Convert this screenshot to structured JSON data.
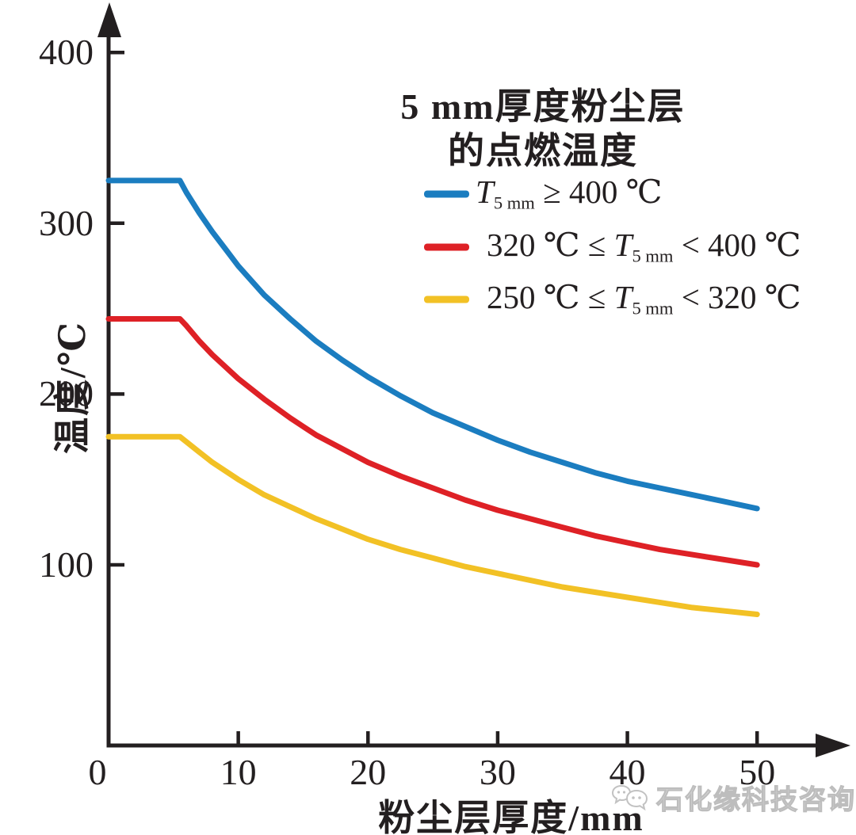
{
  "chart_data": {
    "type": "line",
    "title": "5 mm厚度粉尘层的点燃温度",
    "xlabel": "粉尘层厚度/mm",
    "ylabel": "温度/℃",
    "xlim": [
      0,
      55
    ],
    "ylim": [
      0,
      420
    ],
    "x_ticks": [
      0,
      10,
      20,
      30,
      40,
      50
    ],
    "y_ticks": [
      100,
      200,
      300,
      400
    ],
    "grid": false,
    "legend_position": "upper-right-inside",
    "series": [
      {
        "name": "T5 mm ≥ 400 ℃",
        "color": "#1b7dc0",
        "points": [
          [
            0,
            325
          ],
          [
            5.5,
            325
          ],
          [
            6,
            318
          ],
          [
            7,
            306
          ],
          [
            8,
            295
          ],
          [
            9,
            285
          ],
          [
            10,
            275
          ],
          [
            12,
            258
          ],
          [
            14,
            244
          ],
          [
            16,
            231
          ],
          [
            18,
            220
          ],
          [
            20,
            210
          ],
          [
            22.5,
            199
          ],
          [
            25,
            189
          ],
          [
            27.5,
            181
          ],
          [
            30,
            173
          ],
          [
            32.5,
            166
          ],
          [
            35,
            160
          ],
          [
            37.5,
            154
          ],
          [
            40,
            149
          ],
          [
            42.5,
            145
          ],
          [
            45,
            141
          ],
          [
            47.5,
            137
          ],
          [
            50,
            133
          ]
        ]
      },
      {
        "name": "320 ℃ ≤ T5 mm < 400 ℃",
        "color": "#de2126",
        "points": [
          [
            0,
            244
          ],
          [
            5.5,
            244
          ],
          [
            6,
            240
          ],
          [
            7,
            231
          ],
          [
            8,
            223
          ],
          [
            9,
            216
          ],
          [
            10,
            209
          ],
          [
            12,
            197
          ],
          [
            14,
            186
          ],
          [
            16,
            176
          ],
          [
            18,
            168
          ],
          [
            20,
            160
          ],
          [
            22.5,
            152
          ],
          [
            25,
            145
          ],
          [
            27.5,
            138
          ],
          [
            30,
            132
          ],
          [
            32.5,
            127
          ],
          [
            35,
            122
          ],
          [
            37.5,
            117
          ],
          [
            40,
            113
          ],
          [
            42.5,
            109
          ],
          [
            45,
            106
          ],
          [
            47.5,
            103
          ],
          [
            50,
            100
          ]
        ]
      },
      {
        "name": "250 ℃ ≤ T5 mm < 320 ℃",
        "color": "#f2c125",
        "points": [
          [
            0,
            175
          ],
          [
            5.5,
            175
          ],
          [
            6,
            172
          ],
          [
            7,
            166
          ],
          [
            8,
            160
          ],
          [
            9,
            155
          ],
          [
            10,
            150
          ],
          [
            12,
            141
          ],
          [
            14,
            134
          ],
          [
            16,
            127
          ],
          [
            18,
            121
          ],
          [
            20,
            115
          ],
          [
            22.5,
            109
          ],
          [
            25,
            104
          ],
          [
            27.5,
            99
          ],
          [
            30,
            95
          ],
          [
            32.5,
            91
          ],
          [
            35,
            87
          ],
          [
            37.5,
            84
          ],
          [
            40,
            81
          ],
          [
            42.5,
            78
          ],
          [
            45,
            75
          ],
          [
            47.5,
            73
          ],
          [
            50,
            71
          ]
        ]
      }
    ]
  },
  "axes": {
    "y_title": "温度/℃",
    "x_title": "粉尘层厚度/mm",
    "y_tick_labels": [
      "400",
      "300",
      "200",
      "100"
    ],
    "x_tick_labels": [
      "0",
      "10",
      "20",
      "30",
      "40",
      "50"
    ]
  },
  "legend": {
    "title_line1": "5 mm厚度粉尘层",
    "title_line2": "的点燃温度",
    "items": [
      {
        "color": "#1b7dc0",
        "segments": [
          {
            "t": "T",
            "s": "var"
          },
          {
            "t": "5 mm",
            "s": "sub"
          },
          {
            "t": " ≥ 400 ℃",
            "s": "n"
          }
        ]
      },
      {
        "color": "#de2126",
        "segments": [
          {
            "t": "320 ℃ ≤ ",
            "s": "n"
          },
          {
            "t": "T",
            "s": "var"
          },
          {
            "t": "5 mm",
            "s": "sub"
          },
          {
            "t": " < 400 ℃",
            "s": "n"
          }
        ]
      },
      {
        "color": "#f2c125",
        "segments": [
          {
            "t": "250 ℃ ≤ ",
            "s": "n"
          },
          {
            "t": "T",
            "s": "var"
          },
          {
            "t": "5 mm",
            "s": "sub"
          },
          {
            "t": " < 320 ℃",
            "s": "n"
          }
        ]
      }
    ]
  },
  "watermark": {
    "text": "石化缘科技咨询"
  },
  "colors": {
    "axis": "#231f20",
    "background": "#ffffff",
    "watermark": "#bdbdbd",
    "series_blue": "#1b7dc0",
    "series_red": "#de2126",
    "series_yellow": "#f2c125"
  }
}
